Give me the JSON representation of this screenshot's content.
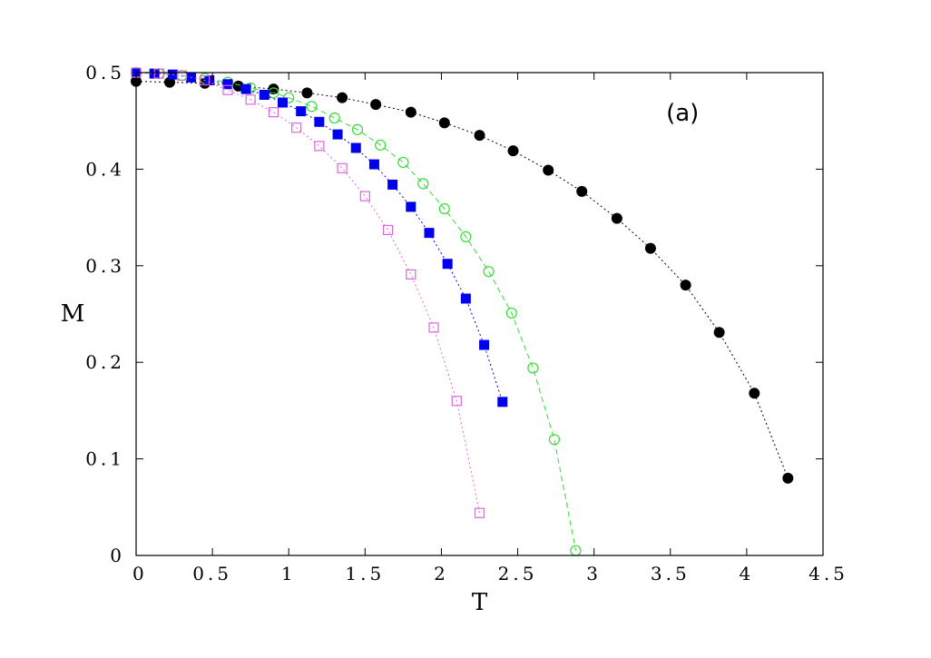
{
  "chart_data": {
    "type": "line",
    "title": "",
    "xlabel": "T",
    "ylabel": "M",
    "xlim": [
      0,
      4.5
    ],
    "ylim": [
      0,
      0.5
    ],
    "xticks": [
      0,
      0.5,
      1,
      1.5,
      2,
      2.5,
      3,
      3.5,
      4,
      4.5
    ],
    "xtick_labels": [
      "0",
      "0.5",
      "1",
      "1.5",
      "2",
      "2.5",
      "3",
      "3.5",
      "4",
      "4.5"
    ],
    "yticks": [
      0,
      0.1,
      0.2,
      0.3,
      0.4,
      0.5
    ],
    "ytick_labels": [
      "0",
      "0.1",
      "0.2",
      "0.3",
      "0.4",
      "0.5"
    ],
    "grid": false,
    "legend": "none",
    "annotation": "(a)",
    "series": [
      {
        "color": "#000000",
        "marker": "filled-circle",
        "line": "dotted",
        "x": [
          0.0,
          0.22,
          0.45,
          0.67,
          0.9,
          1.12,
          1.35,
          1.57,
          1.8,
          2.02,
          2.25,
          2.47,
          2.7,
          2.92,
          3.15,
          3.37,
          3.6,
          3.82,
          4.05,
          4.27
        ],
        "y": [
          0.491,
          0.49,
          0.489,
          0.486,
          0.483,
          0.479,
          0.474,
          0.467,
          0.459,
          0.448,
          0.435,
          0.419,
          0.399,
          0.377,
          0.349,
          0.318,
          0.28,
          0.231,
          0.168,
          0.08
        ]
      },
      {
        "color": "#33dd33",
        "marker": "open-circle",
        "line": "dashed",
        "x": [
          0.0,
          0.15,
          0.3,
          0.45,
          0.6,
          0.75,
          0.9,
          1.0,
          1.15,
          1.3,
          1.45,
          1.6,
          1.75,
          1.88,
          2.02,
          2.16,
          2.31,
          2.46,
          2.6,
          2.74,
          2.88
        ],
        "y": [
          0.5,
          0.499,
          0.497,
          0.494,
          0.49,
          0.484,
          0.479,
          0.474,
          0.465,
          0.453,
          0.441,
          0.425,
          0.407,
          0.385,
          0.359,
          0.33,
          0.294,
          0.251,
          0.194,
          0.12,
          0.005
        ]
      },
      {
        "color": "#0000ee",
        "marker": "filled-square",
        "line": "dotted",
        "x": [
          0.0,
          0.12,
          0.24,
          0.36,
          0.48,
          0.6,
          0.72,
          0.84,
          0.96,
          1.08,
          1.2,
          1.32,
          1.44,
          1.56,
          1.68,
          1.8,
          1.92,
          2.04,
          2.16,
          2.28,
          2.4
        ],
        "y": [
          0.5,
          0.499,
          0.498,
          0.495,
          0.492,
          0.488,
          0.483,
          0.477,
          0.469,
          0.46,
          0.449,
          0.436,
          0.422,
          0.405,
          0.384,
          0.361,
          0.334,
          0.302,
          0.266,
          0.218,
          0.159
        ]
      },
      {
        "color": "#dd66dd",
        "marker": "open-square",
        "line": "dotted",
        "x": [
          0.0,
          0.15,
          0.3,
          0.45,
          0.6,
          0.75,
          0.9,
          1.05,
          1.2,
          1.35,
          1.5,
          1.65,
          1.8,
          1.95,
          2.1,
          2.25
        ],
        "y": [
          0.5,
          0.499,
          0.497,
          0.492,
          0.482,
          0.472,
          0.459,
          0.443,
          0.424,
          0.401,
          0.372,
          0.337,
          0.291,
          0.236,
          0.16,
          0.044
        ]
      }
    ]
  }
}
